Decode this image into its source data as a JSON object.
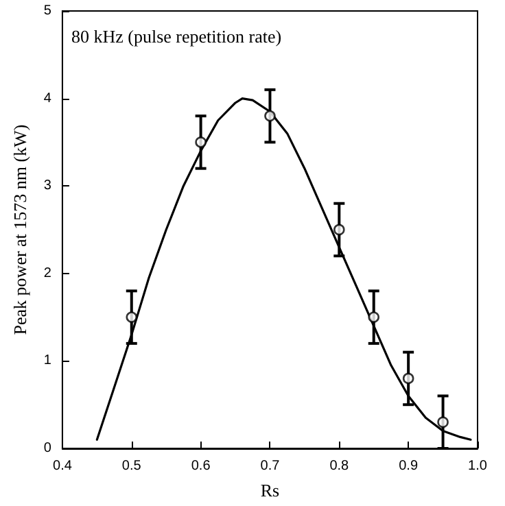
{
  "chart_data": {
    "type": "scatter",
    "xlabel": "Rs",
    "ylabel": "Peak power at 1573 nm (kW)",
    "annotations": [
      "80 kHz (pulse repetition rate)"
    ],
    "xlim": [
      0.4,
      1.0
    ],
    "xticks": [
      0.4,
      0.5,
      0.6,
      0.7,
      0.8,
      0.9,
      {
        "value": 1,
        "label": "1.0"
      }
    ],
    "ylim": [
      0,
      5
    ],
    "yticks": [
      0,
      1,
      2,
      3,
      4,
      5
    ],
    "grid": false,
    "series": [
      {
        "color": "#000000",
        "marker": "circle",
        "x": [
          0.5,
          0.6,
          0.7,
          0.8,
          0.85,
          0.9,
          0.95
        ],
        "values": [
          1.5,
          3.5,
          3.8,
          2.5,
          1.5,
          0.8,
          0.3
        ],
        "errors": [
          0.3,
          0.3,
          0.3,
          0.3,
          0.3,
          0.3,
          0.3
        ]
      },
      {
        "type": "line",
        "color": "#000000",
        "marker": "none",
        "line_style": "solid",
        "x": [
          0.45,
          0.475,
          0.5,
          0.525,
          0.55,
          0.575,
          0.6,
          0.625,
          0.65,
          0.66,
          0.675,
          0.7,
          0.725,
          0.75,
          0.775,
          0.8,
          0.825,
          0.85,
          0.875,
          0.9,
          0.925,
          0.95,
          0.975,
          0.99
        ],
        "values": [
          0.1,
          0.7,
          1.3,
          1.95,
          2.5,
          3.0,
          3.4,
          3.75,
          3.95,
          4.0,
          3.98,
          3.85,
          3.6,
          3.2,
          2.75,
          2.3,
          1.85,
          1.4,
          0.95,
          0.6,
          0.35,
          0.2,
          0.13,
          0.1
        ]
      }
    ]
  }
}
